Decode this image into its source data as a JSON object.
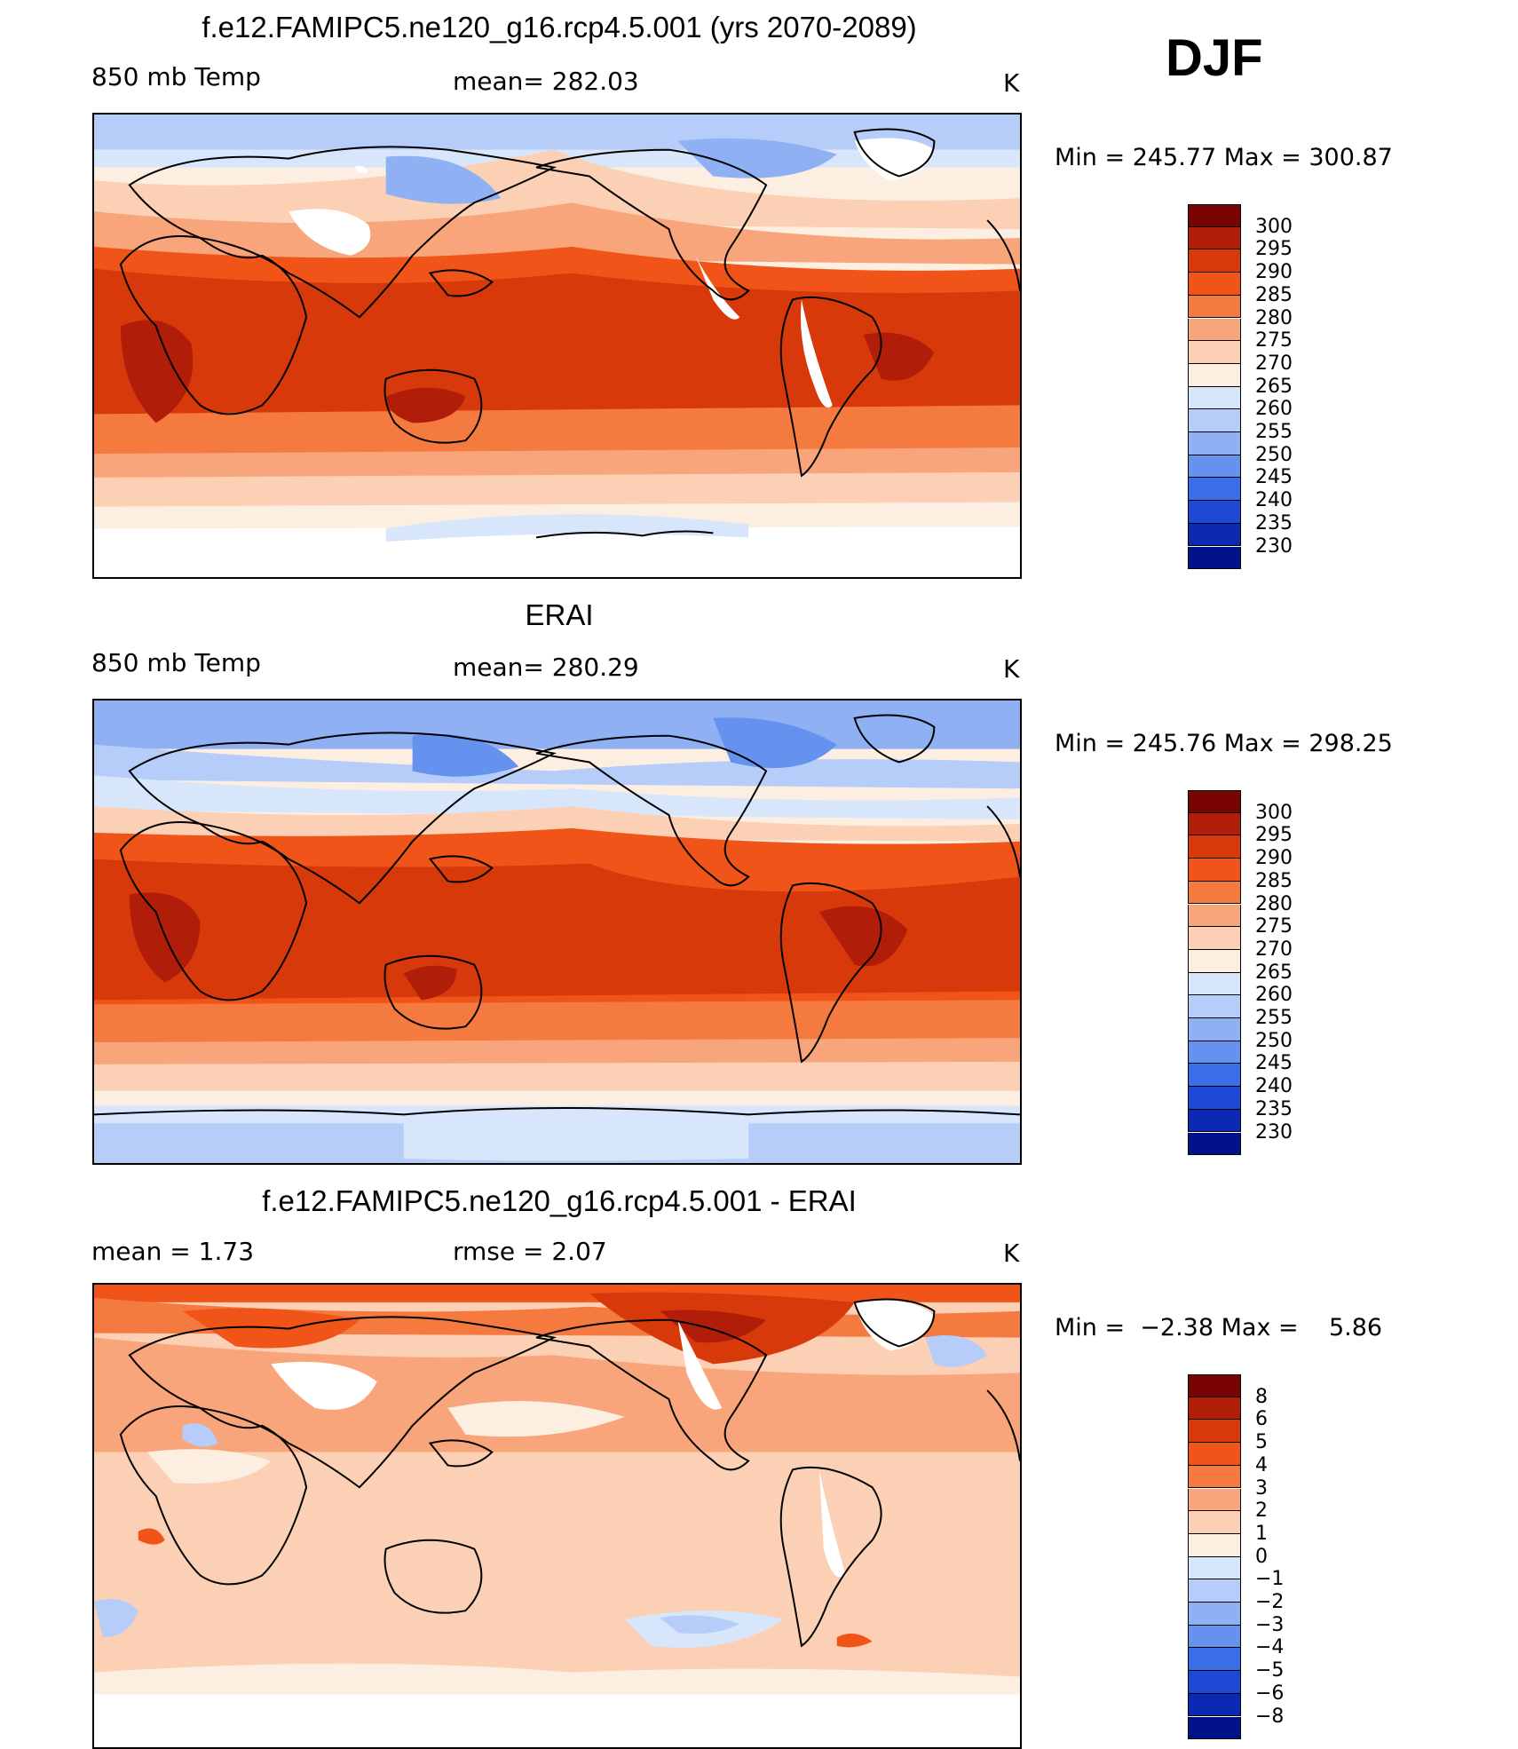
{
  "season": "DJF",
  "panels": [
    {
      "title": "f.e12.FAMIPC5.ne120_g16.rcp4.5.001 (yrs 2070-2089)",
      "left_label": "850 mb Temp",
      "center_label": "mean= 282.03",
      "units": "K",
      "min_max": "Min = 245.77 Max = 300.87",
      "colorbar_labels": [
        "300",
        "295",
        "290",
        "285",
        "280",
        "275",
        "270",
        "265",
        "260",
        "255",
        "250",
        "245",
        "240",
        "235",
        "230"
      ]
    },
    {
      "title": "ERAI",
      "left_label": "850 mb Temp",
      "center_label": "mean= 280.29",
      "units": "K",
      "min_max": "Min = 245.76 Max = 298.25",
      "colorbar_labels": [
        "300",
        "295",
        "290",
        "285",
        "280",
        "275",
        "270",
        "265",
        "260",
        "255",
        "250",
        "245",
        "240",
        "235",
        "230"
      ]
    },
    {
      "title": "f.e12.FAMIPC5.ne120_g16.rcp4.5.001 - ERAI",
      "left_label": "mean =    1.73",
      "center_label": "rmse =    2.07",
      "units": "K",
      "min_max": "Min =  −2.38 Max =    5.86",
      "colorbar_labels": [
        "8",
        "6",
        "5",
        "4",
        "3",
        "2",
        "1",
        "0",
        "−1",
        "−2",
        "−3",
        "−4",
        "−5",
        "−6",
        "−8"
      ]
    }
  ],
  "colors": {
    "temp_scale": [
      "#7a0403",
      "#b01e0a",
      "#d8390b",
      "#f05418",
      "#f57a40",
      "#f9a57c",
      "#fcd0b4",
      "#fdeee2",
      "#d8e6fb",
      "#b5cdf8",
      "#8fb0f3",
      "#6592ee",
      "#3a6ee6",
      "#1f49d4",
      "#0c2ab1",
      "#02128a"
    ],
    "diff_scale": [
      "#7a0403",
      "#b01e0a",
      "#d8390b",
      "#f05418",
      "#f57a40",
      "#f9a57c",
      "#fcd0b4",
      "#fdeee2",
      "#d8e6fb",
      "#b5cdf8",
      "#8fb0f3",
      "#6592ee",
      "#3a6ee6",
      "#1f49d4",
      "#0c2ab1",
      "#02128a"
    ]
  }
}
